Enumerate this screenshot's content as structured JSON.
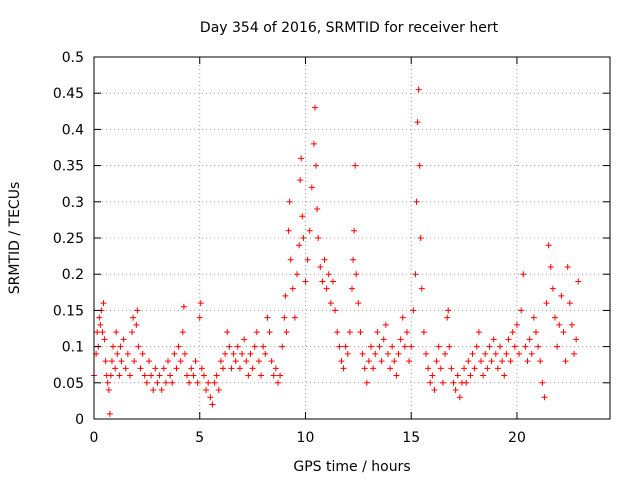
{
  "chart_data": {
    "type": "scatter",
    "title": "Day 354 of 2016, SRMTID for receiver hert",
    "xlabel": "GPS time / hours",
    "ylabel": "SRMTID / TECUs",
    "xlim": [
      0,
      24.4
    ],
    "ylim": [
      0,
      0.5
    ],
    "xticks": [
      0,
      5,
      10,
      15,
      20
    ],
    "xtick_labels": [
      "0",
      "5",
      "10",
      "15",
      "20"
    ],
    "yticks": [
      0,
      0.05,
      0.1,
      0.15,
      0.2,
      0.25,
      0.3,
      0.35,
      0.4,
      0.45,
      0.5
    ],
    "ytick_labels": [
      "0",
      "0.05",
      "0.1",
      "0.15",
      "0.2",
      "0.25",
      "0.3",
      "0.35",
      "0.4",
      "0.45",
      "0.5"
    ],
    "grid": true,
    "marker": "+",
    "marker_color": "#ff0000",
    "series": [
      {
        "name": "SRMTID",
        "points": [
          [
            0.0,
            0.06
          ],
          [
            0.1,
            0.09
          ],
          [
            0.15,
            0.12
          ],
          [
            0.2,
            0.1
          ],
          [
            0.25,
            0.14
          ],
          [
            0.3,
            0.13
          ],
          [
            0.35,
            0.15
          ],
          [
            0.4,
            0.12
          ],
          [
            0.45,
            0.16
          ],
          [
            0.5,
            0.11
          ],
          [
            0.55,
            0.08
          ],
          [
            0.6,
            0.06
          ],
          [
            0.65,
            0.05
          ],
          [
            0.7,
            0.04
          ],
          [
            0.75,
            0.007
          ],
          [
            0.8,
            0.06
          ],
          [
            0.85,
            0.08
          ],
          [
            0.9,
            0.1
          ],
          [
            1.0,
            0.07
          ],
          [
            1.05,
            0.12
          ],
          [
            1.1,
            0.09
          ],
          [
            1.2,
            0.06
          ],
          [
            1.25,
            0.1
          ],
          [
            1.3,
            0.08
          ],
          [
            1.4,
            0.11
          ],
          [
            1.5,
            0.07
          ],
          [
            1.6,
            0.09
          ],
          [
            1.7,
            0.06
          ],
          [
            1.8,
            0.12
          ],
          [
            1.85,
            0.14
          ],
          [
            1.9,
            0.08
          ],
          [
            2.0,
            0.13
          ],
          [
            2.05,
            0.15
          ],
          [
            2.1,
            0.1
          ],
          [
            2.2,
            0.07
          ],
          [
            2.3,
            0.09
          ],
          [
            2.4,
            0.06
          ],
          [
            2.5,
            0.05
          ],
          [
            2.6,
            0.08
          ],
          [
            2.7,
            0.06
          ],
          [
            2.8,
            0.04
          ],
          [
            2.9,
            0.07
          ],
          [
            3.0,
            0.05
          ],
          [
            3.1,
            0.06
          ],
          [
            3.2,
            0.04
          ],
          [
            3.3,
            0.07
          ],
          [
            3.4,
            0.05
          ],
          [
            3.5,
            0.08
          ],
          [
            3.6,
            0.06
          ],
          [
            3.7,
            0.05
          ],
          [
            3.8,
            0.09
          ],
          [
            3.9,
            0.07
          ],
          [
            4.0,
            0.1
          ],
          [
            4.1,
            0.08
          ],
          [
            4.2,
            0.12
          ],
          [
            4.25,
            0.155
          ],
          [
            4.3,
            0.09
          ],
          [
            4.4,
            0.06
          ],
          [
            4.5,
            0.05
          ],
          [
            4.6,
            0.07
          ],
          [
            4.7,
            0.06
          ],
          [
            4.8,
            0.08
          ],
          [
            4.9,
            0.05
          ],
          [
            5.0,
            0.14
          ],
          [
            5.05,
            0.16
          ],
          [
            5.1,
            0.07
          ],
          [
            5.2,
            0.06
          ],
          [
            5.3,
            0.04
          ],
          [
            5.4,
            0.05
          ],
          [
            5.5,
            0.03
          ],
          [
            5.6,
            0.02
          ],
          [
            5.7,
            0.05
          ],
          [
            5.8,
            0.06
          ],
          [
            5.9,
            0.04
          ],
          [
            6.0,
            0.08
          ],
          [
            6.1,
            0.07
          ],
          [
            6.2,
            0.09
          ],
          [
            6.3,
            0.12
          ],
          [
            6.4,
            0.1
          ],
          [
            6.5,
            0.07
          ],
          [
            6.6,
            0.09
          ],
          [
            6.7,
            0.08
          ],
          [
            6.8,
            0.1
          ],
          [
            6.9,
            0.07
          ],
          [
            7.0,
            0.09
          ],
          [
            7.1,
            0.11
          ],
          [
            7.2,
            0.08
          ],
          [
            7.3,
            0.06
          ],
          [
            7.4,
            0.09
          ],
          [
            7.5,
            0.07
          ],
          [
            7.6,
            0.1
          ],
          [
            7.7,
            0.12
          ],
          [
            7.8,
            0.08
          ],
          [
            7.9,
            0.06
          ],
          [
            8.0,
            0.1
          ],
          [
            8.1,
            0.09
          ],
          [
            8.2,
            0.14
          ],
          [
            8.3,
            0.12
          ],
          [
            8.4,
            0.08
          ],
          [
            8.5,
            0.06
          ],
          [
            8.6,
            0.07
          ],
          [
            8.7,
            0.05
          ],
          [
            8.8,
            0.06
          ],
          [
            8.9,
            0.1
          ],
          [
            9.0,
            0.14
          ],
          [
            9.05,
            0.17
          ],
          [
            9.1,
            0.12
          ],
          [
            9.2,
            0.26
          ],
          [
            9.25,
            0.3
          ],
          [
            9.3,
            0.22
          ],
          [
            9.4,
            0.18
          ],
          [
            9.5,
            0.14
          ],
          [
            9.6,
            0.2
          ],
          [
            9.7,
            0.24
          ],
          [
            9.75,
            0.33
          ],
          [
            9.8,
            0.36
          ],
          [
            9.85,
            0.28
          ],
          [
            9.9,
            0.25
          ],
          [
            10.0,
            0.19
          ],
          [
            10.1,
            0.22
          ],
          [
            10.2,
            0.26
          ],
          [
            10.3,
            0.32
          ],
          [
            10.4,
            0.38
          ],
          [
            10.45,
            0.43
          ],
          [
            10.5,
            0.35
          ],
          [
            10.55,
            0.29
          ],
          [
            10.6,
            0.25
          ],
          [
            10.7,
            0.21
          ],
          [
            10.8,
            0.19
          ],
          [
            10.9,
            0.22
          ],
          [
            11.0,
            0.18
          ],
          [
            11.1,
            0.2
          ],
          [
            11.2,
            0.16
          ],
          [
            11.3,
            0.19
          ],
          [
            11.4,
            0.15
          ],
          [
            11.5,
            0.12
          ],
          [
            11.6,
            0.1
          ],
          [
            11.7,
            0.08
          ],
          [
            11.8,
            0.07
          ],
          [
            11.9,
            0.1
          ],
          [
            12.0,
            0.09
          ],
          [
            12.1,
            0.12
          ],
          [
            12.2,
            0.18
          ],
          [
            12.25,
            0.22
          ],
          [
            12.3,
            0.26
          ],
          [
            12.35,
            0.35
          ],
          [
            12.4,
            0.2
          ],
          [
            12.5,
            0.16
          ],
          [
            12.6,
            0.12
          ],
          [
            12.7,
            0.09
          ],
          [
            12.8,
            0.07
          ],
          [
            12.9,
            0.05
          ],
          [
            13.0,
            0.08
          ],
          [
            13.1,
            0.1
          ],
          [
            13.2,
            0.07
          ],
          [
            13.3,
            0.09
          ],
          [
            13.4,
            0.12
          ],
          [
            13.5,
            0.1
          ],
          [
            13.6,
            0.08
          ],
          [
            13.7,
            0.11
          ],
          [
            13.8,
            0.13
          ],
          [
            13.9,
            0.09
          ],
          [
            14.0,
            0.07
          ],
          [
            14.1,
            0.1
          ],
          [
            14.2,
            0.08
          ],
          [
            14.3,
            0.06
          ],
          [
            14.4,
            0.09
          ],
          [
            14.5,
            0.11
          ],
          [
            14.6,
            0.14
          ],
          [
            14.7,
            0.1
          ],
          [
            14.8,
            0.12
          ],
          [
            14.9,
            0.08
          ],
          [
            15.0,
            0.1
          ],
          [
            15.1,
            0.15
          ],
          [
            15.2,
            0.2
          ],
          [
            15.25,
            0.3
          ],
          [
            15.3,
            0.41
          ],
          [
            15.35,
            0.455
          ],
          [
            15.4,
            0.35
          ],
          [
            15.45,
            0.25
          ],
          [
            15.5,
            0.18
          ],
          [
            15.6,
            0.12
          ],
          [
            15.7,
            0.09
          ],
          [
            15.8,
            0.07
          ],
          [
            15.9,
            0.05
          ],
          [
            16.0,
            0.06
          ],
          [
            16.1,
            0.04
          ],
          [
            16.2,
            0.08
          ],
          [
            16.3,
            0.1
          ],
          [
            16.4,
            0.07
          ],
          [
            16.5,
            0.05
          ],
          [
            16.6,
            0.09
          ],
          [
            16.7,
            0.14
          ],
          [
            16.75,
            0.15
          ],
          [
            16.8,
            0.1
          ],
          [
            16.9,
            0.07
          ],
          [
            17.0,
            0.05
          ],
          [
            17.1,
            0.04
          ],
          [
            17.2,
            0.06
          ],
          [
            17.3,
            0.03
          ],
          [
            17.4,
            0.05
          ],
          [
            17.5,
            0.07
          ],
          [
            17.6,
            0.05
          ],
          [
            17.7,
            0.08
          ],
          [
            17.8,
            0.06
          ],
          [
            17.9,
            0.09
          ],
          [
            18.0,
            0.07
          ],
          [
            18.1,
            0.1
          ],
          [
            18.2,
            0.12
          ],
          [
            18.3,
            0.08
          ],
          [
            18.4,
            0.06
          ],
          [
            18.5,
            0.09
          ],
          [
            18.6,
            0.07
          ],
          [
            18.7,
            0.1
          ],
          [
            18.8,
            0.08
          ],
          [
            18.9,
            0.11
          ],
          [
            19.0,
            0.09
          ],
          [
            19.1,
            0.07
          ],
          [
            19.2,
            0.1
          ],
          [
            19.3,
            0.08
          ],
          [
            19.4,
            0.06
          ],
          [
            19.5,
            0.09
          ],
          [
            19.6,
            0.11
          ],
          [
            19.7,
            0.08
          ],
          [
            19.8,
            0.12
          ],
          [
            19.9,
            0.1
          ],
          [
            20.0,
            0.13
          ],
          [
            20.1,
            0.09
          ],
          [
            20.2,
            0.15
          ],
          [
            20.3,
            0.2
          ],
          [
            20.4,
            0.1
          ],
          [
            20.5,
            0.08
          ],
          [
            20.6,
            0.11
          ],
          [
            20.7,
            0.09
          ],
          [
            20.8,
            0.14
          ],
          [
            20.9,
            0.12
          ],
          [
            21.0,
            0.1
          ],
          [
            21.1,
            0.08
          ],
          [
            21.2,
            0.05
          ],
          [
            21.3,
            0.03
          ],
          [
            21.4,
            0.16
          ],
          [
            21.5,
            0.24
          ],
          [
            21.6,
            0.21
          ],
          [
            21.7,
            0.18
          ],
          [
            21.8,
            0.14
          ],
          [
            21.9,
            0.1
          ],
          [
            22.0,
            0.13
          ],
          [
            22.1,
            0.17
          ],
          [
            22.2,
            0.12
          ],
          [
            22.3,
            0.08
          ],
          [
            22.4,
            0.21
          ],
          [
            22.5,
            0.16
          ],
          [
            22.6,
            0.13
          ],
          [
            22.7,
            0.09
          ],
          [
            22.8,
            0.11
          ],
          [
            22.9,
            0.19
          ]
        ]
      }
    ]
  }
}
